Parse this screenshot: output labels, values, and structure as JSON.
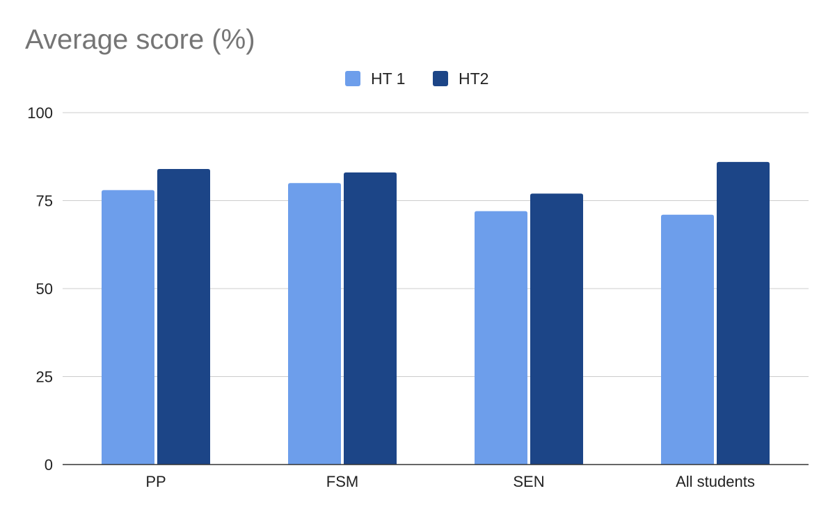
{
  "chart_data": {
    "type": "bar",
    "title": "Average score (%)",
    "xlabel": "",
    "ylabel": "",
    "categories": [
      "PP",
      "FSM",
      "SEN",
      "All students"
    ],
    "series": [
      {
        "name": "HT 1",
        "color": "#6d9eeb",
        "values": [
          78,
          80,
          72,
          71
        ]
      },
      {
        "name": "HT2",
        "color": "#1c4587",
        "values": [
          84,
          83,
          77,
          86
        ]
      }
    ],
    "ylim": [
      0,
      100
    ],
    "yticks": [
      0,
      25,
      50,
      75,
      100
    ],
    "grid": true,
    "legend_position": "top"
  }
}
